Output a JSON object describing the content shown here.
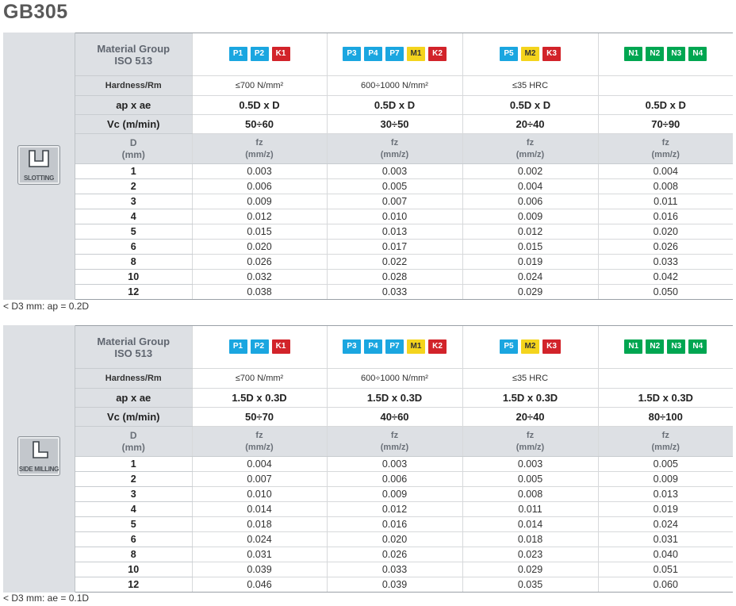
{
  "title": "GB305",
  "tables": [
    {
      "operation": "SLOTTING",
      "icon": "slotting-icon",
      "labels": {
        "material_group_line1": "Material Group",
        "material_group_line2": "ISO 513",
        "hardness": "Hardness/Rm",
        "apae": "ap x ae",
        "vc": "Vc (m/min)",
        "d_head_line1": "D",
        "d_head_line2": "(mm)",
        "fz_line1": "fz",
        "fz_line2": "(mm/z)"
      },
      "groups": [
        {
          "badges": [
            {
              "t": "P1",
              "c": "P"
            },
            {
              "t": "P2",
              "c": "P"
            },
            {
              "t": "K1",
              "c": "K"
            }
          ],
          "hardness": "≤700 N/mm²",
          "apae": "0.5D x D",
          "vc": "50÷60"
        },
        {
          "badges": [
            {
              "t": "P3",
              "c": "P"
            },
            {
              "t": "P4",
              "c": "P"
            },
            {
              "t": "P7",
              "c": "P"
            },
            {
              "t": "M1",
              "c": "M"
            },
            {
              "t": "K2",
              "c": "K"
            }
          ],
          "hardness": "600÷1000 N/mm²",
          "apae": "0.5D x D",
          "vc": "30÷50"
        },
        {
          "badges": [
            {
              "t": "P5",
              "c": "P"
            },
            {
              "t": "M2",
              "c": "M"
            },
            {
              "t": "K3",
              "c": "K"
            }
          ],
          "hardness": "≤35 HRC",
          "apae": "0.5D x D",
          "vc": "20÷40"
        },
        {
          "badges": [
            {
              "t": "N1",
              "c": "N"
            },
            {
              "t": "N2",
              "c": "N"
            },
            {
              "t": "N3",
              "c": "N"
            },
            {
              "t": "N4",
              "c": "N"
            }
          ],
          "hardness": "",
          "apae": "0.5D x D",
          "vc": "70÷90"
        }
      ],
      "rows": [
        {
          "d": "1",
          "fz": [
            "0.003",
            "0.003",
            "0.002",
            "0.004"
          ]
        },
        {
          "d": "2",
          "fz": [
            "0.006",
            "0.005",
            "0.004",
            "0.008"
          ]
        },
        {
          "d": "3",
          "fz": [
            "0.009",
            "0.007",
            "0.006",
            "0.011"
          ]
        },
        {
          "d": "4",
          "fz": [
            "0.012",
            "0.010",
            "0.009",
            "0.016"
          ]
        },
        {
          "d": "5",
          "fz": [
            "0.015",
            "0.013",
            "0.012",
            "0.020"
          ]
        },
        {
          "d": "6",
          "fz": [
            "0.020",
            "0.017",
            "0.015",
            "0.026"
          ]
        },
        {
          "d": "8",
          "fz": [
            "0.026",
            "0.022",
            "0.019",
            "0.033"
          ]
        },
        {
          "d": "10",
          "fz": [
            "0.032",
            "0.028",
            "0.024",
            "0.042"
          ]
        },
        {
          "d": "12",
          "fz": [
            "0.038",
            "0.033",
            "0.029",
            "0.050"
          ]
        }
      ],
      "note": "< D3 mm: ap = 0.2D"
    },
    {
      "operation": "SIDE MILLING",
      "icon": "side-milling-icon",
      "labels": {
        "material_group_line1": "Material Group",
        "material_group_line2": "ISO 513",
        "hardness": "Hardness/Rm",
        "apae": "ap x ae",
        "vc": "Vc (m/min)",
        "d_head_line1": "D",
        "d_head_line2": "(mm)",
        "fz_line1": "fz",
        "fz_line2": "(mm/z)"
      },
      "groups": [
        {
          "badges": [
            {
              "t": "P1",
              "c": "P"
            },
            {
              "t": "P2",
              "c": "P"
            },
            {
              "t": "K1",
              "c": "K"
            }
          ],
          "hardness": "≤700 N/mm²",
          "apae": "1.5D x 0.3D",
          "vc": "50÷70"
        },
        {
          "badges": [
            {
              "t": "P3",
              "c": "P"
            },
            {
              "t": "P4",
              "c": "P"
            },
            {
              "t": "P7",
              "c": "P"
            },
            {
              "t": "M1",
              "c": "M"
            },
            {
              "t": "K2",
              "c": "K"
            }
          ],
          "hardness": "600÷1000 N/mm²",
          "apae": "1.5D x 0.3D",
          "vc": "40÷60"
        },
        {
          "badges": [
            {
              "t": "P5",
              "c": "P"
            },
            {
              "t": "M2",
              "c": "M"
            },
            {
              "t": "K3",
              "c": "K"
            }
          ],
          "hardness": "≤35 HRC",
          "apae": "1.5D x 0.3D",
          "vc": "20÷40"
        },
        {
          "badges": [
            {
              "t": "N1",
              "c": "N"
            },
            {
              "t": "N2",
              "c": "N"
            },
            {
              "t": "N3",
              "c": "N"
            },
            {
              "t": "N4",
              "c": "N"
            }
          ],
          "hardness": "",
          "apae": "1.5D x 0.3D",
          "vc": "80÷100"
        }
      ],
      "rows": [
        {
          "d": "1",
          "fz": [
            "0.004",
            "0.003",
            "0.003",
            "0.005"
          ]
        },
        {
          "d": "2",
          "fz": [
            "0.007",
            "0.006",
            "0.005",
            "0.009"
          ]
        },
        {
          "d": "3",
          "fz": [
            "0.010",
            "0.009",
            "0.008",
            "0.013"
          ]
        },
        {
          "d": "4",
          "fz": [
            "0.014",
            "0.012",
            "0.011",
            "0.019"
          ]
        },
        {
          "d": "5",
          "fz": [
            "0.018",
            "0.016",
            "0.014",
            "0.024"
          ]
        },
        {
          "d": "6",
          "fz": [
            "0.024",
            "0.020",
            "0.018",
            "0.031"
          ]
        },
        {
          "d": "8",
          "fz": [
            "0.031",
            "0.026",
            "0.023",
            "0.040"
          ]
        },
        {
          "d": "10",
          "fz": [
            "0.039",
            "0.033",
            "0.029",
            "0.051"
          ]
        },
        {
          "d": "12",
          "fz": [
            "0.046",
            "0.039",
            "0.035",
            "0.060"
          ]
        }
      ],
      "note": "< D3 mm: ae = 0.1D"
    }
  ],
  "colors": {
    "P": "#1aa6e0",
    "M": "#f4d41d",
    "K": "#d2232a",
    "N": "#00a651",
    "label_bg": "#dde0e4",
    "title": "#595959"
  }
}
